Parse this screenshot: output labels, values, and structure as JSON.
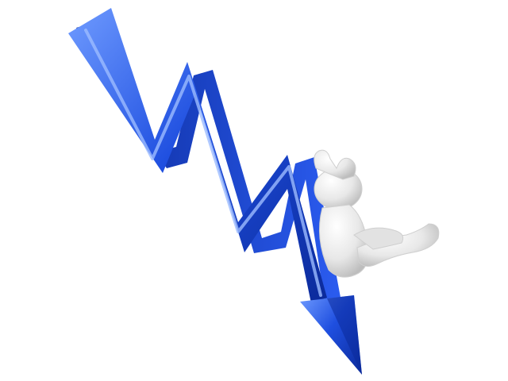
{
  "image": {
    "subject": "downward-trend-arrow-with-falling-figure",
    "colors": {
      "background": "#ffffff",
      "arrow_light": "#5a8cff",
      "arrow_main": "#1f4fe0",
      "arrow_dark": "#0b2a9a",
      "figure_light": "#f4f4f4",
      "figure_shadow": "#c8c8c8"
    }
  }
}
